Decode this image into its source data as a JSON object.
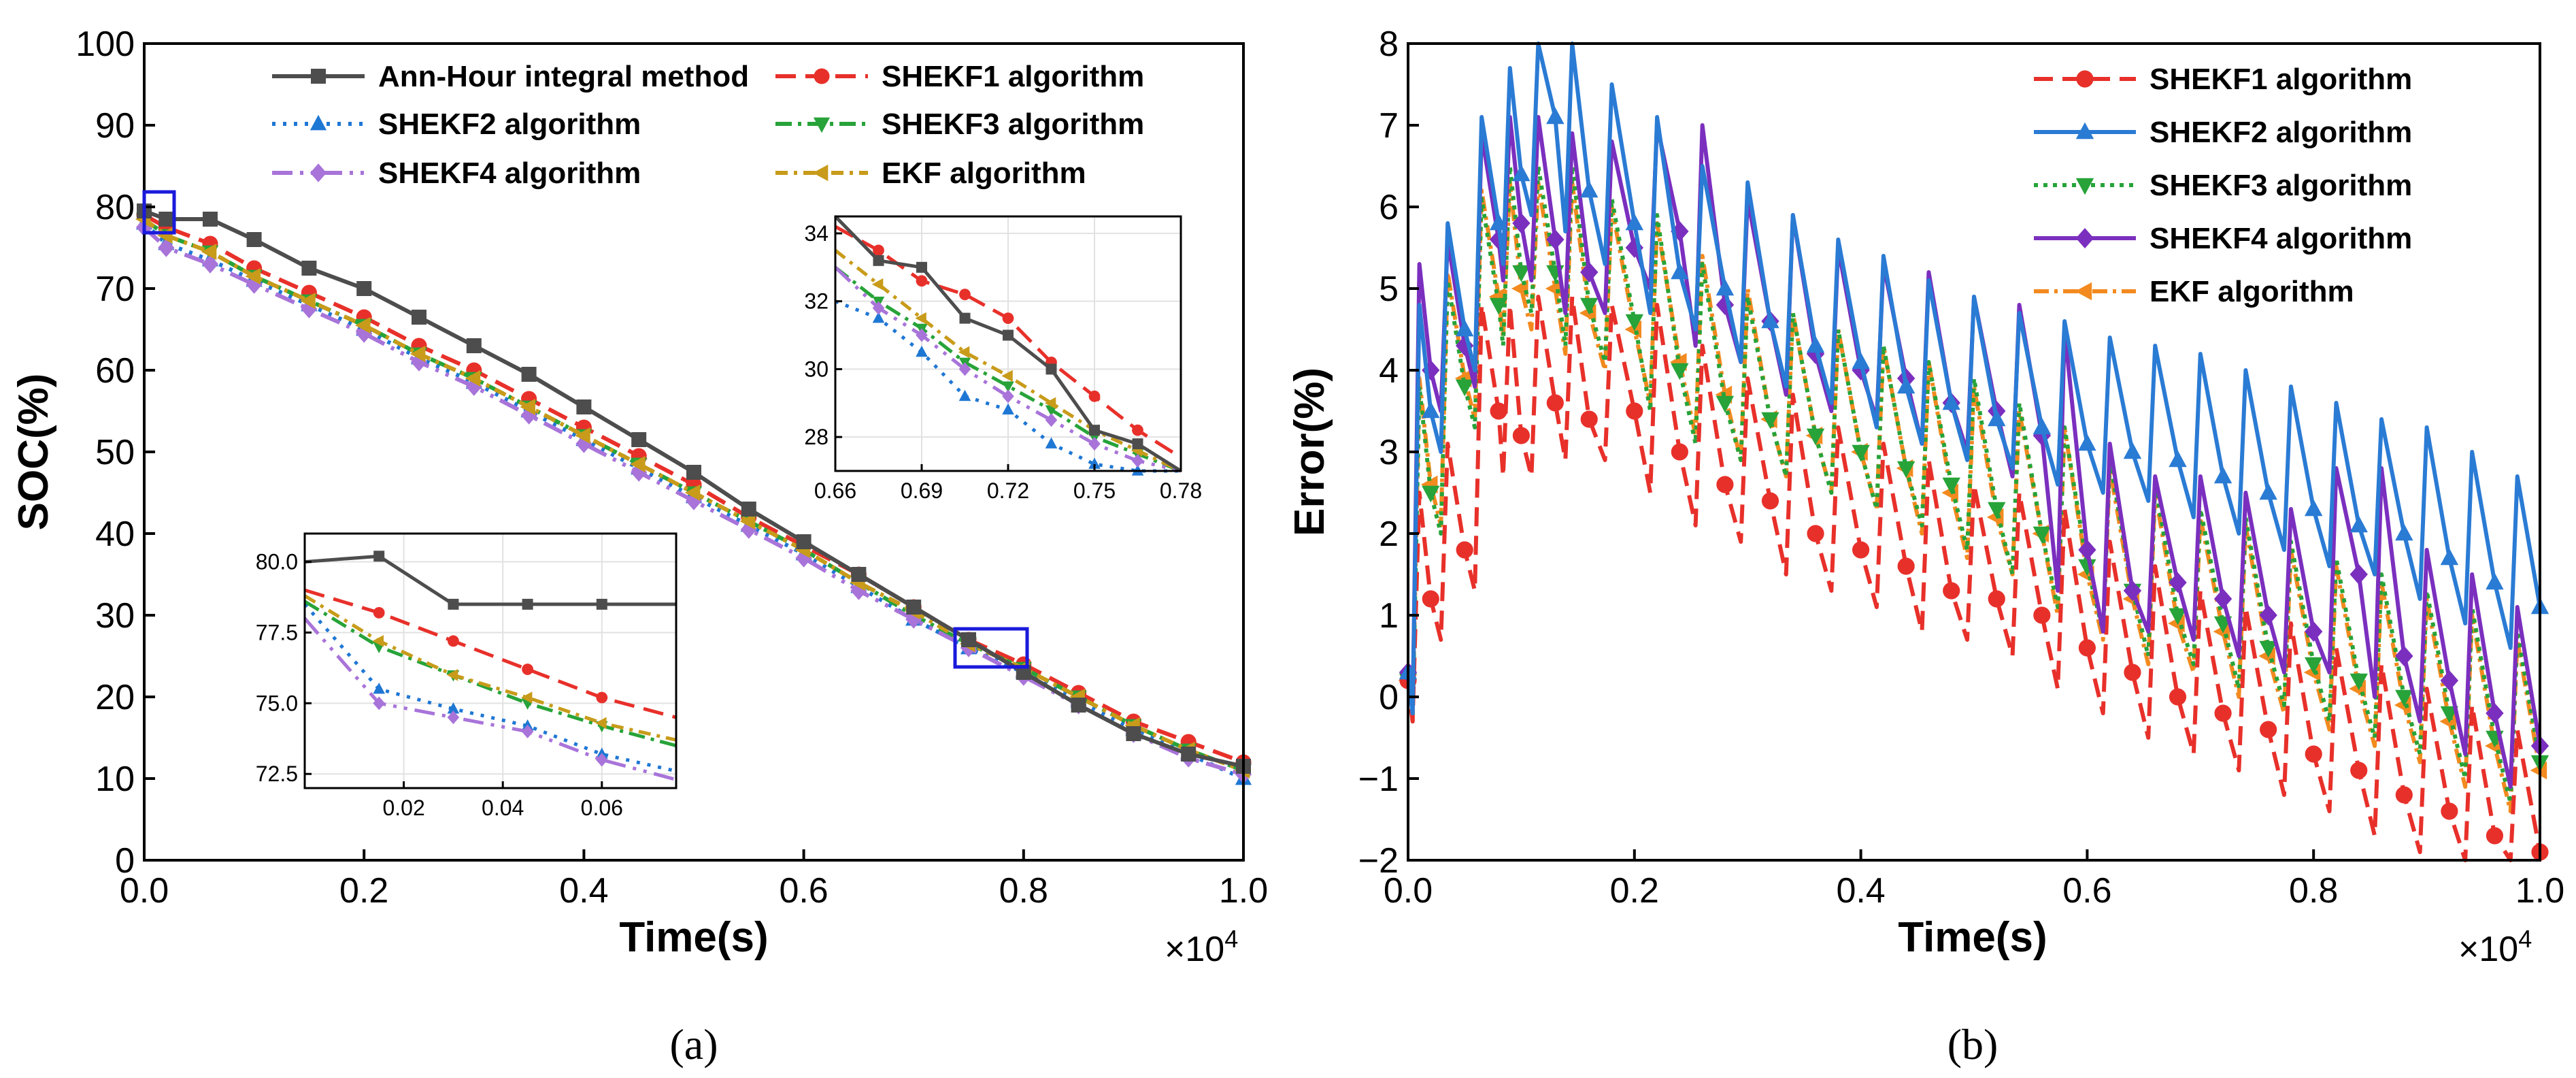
{
  "chart_data": [
    {
      "id": "a",
      "type": "line",
      "caption": "(a)",
      "xlabel": "Time(s)",
      "ylabel": "SOC(%)",
      "x_multiplier": "×10",
      "x_multiplier_exp": "4",
      "xlim": [
        0.0,
        1.0
      ],
      "ylim": [
        0,
        100
      ],
      "xticks": [
        0.0,
        0.2,
        0.4,
        0.6,
        0.8,
        1.0
      ],
      "xtick_labels": [
        "0.0",
        "0.2",
        "0.4",
        "0.6",
        "0.8",
        "1.0"
      ],
      "yticks": [
        0,
        10,
        20,
        30,
        40,
        50,
        60,
        70,
        80,
        90,
        100
      ],
      "ytick_labels": [
        "0",
        "10",
        "20",
        "30",
        "40",
        "50",
        "60",
        "70",
        "80",
        "90",
        "100"
      ],
      "x": [
        0.0,
        0.02,
        0.06,
        0.1,
        0.15,
        0.2,
        0.25,
        0.3,
        0.35,
        0.4,
        0.45,
        0.5,
        0.55,
        0.6,
        0.65,
        0.7,
        0.75,
        0.8,
        0.85,
        0.9,
        0.95,
        1.0
      ],
      "series": [
        {
          "name": "Ann-Hour integral method",
          "color": "#4d4d4d",
          "dash": "",
          "marker": "square",
          "values": [
            79.5,
            78.5,
            78.5,
            76.0,
            72.5,
            70.0,
            66.5,
            63.0,
            59.5,
            55.5,
            51.5,
            47.5,
            43.0,
            39.0,
            35.0,
            31.0,
            27.0,
            23.0,
            19.0,
            15.5,
            13.0,
            11.5
          ]
        },
        {
          "name": "SHEKF1 algorithm",
          "color": "#e8302a",
          "dash": "30,14",
          "marker": "circle",
          "values": [
            79.0,
            77.5,
            75.5,
            72.5,
            69.5,
            66.5,
            63.0,
            60.0,
            56.5,
            53.0,
            49.5,
            46.0,
            42.0,
            38.5,
            35.0,
            31.0,
            27.0,
            24.0,
            20.5,
            17.0,
            14.5,
            12.0
          ]
        },
        {
          "name": "SHEKF2 algorithm",
          "color": "#1f77d4",
          "dash": "5,11",
          "marker": "triangle-up",
          "values": [
            78.0,
            75.5,
            73.5,
            71.0,
            68.0,
            65.0,
            61.5,
            58.5,
            55.0,
            51.5,
            48.0,
            44.5,
            41.0,
            37.5,
            33.5,
            29.5,
            26.0,
            23.0,
            19.5,
            16.0,
            13.0,
            10.0
          ]
        },
        {
          "name": "SHEKF3 algorithm",
          "color": "#27a339",
          "dash": "24,9,5,9",
          "marker": "triangle-down",
          "values": [
            78.5,
            76.5,
            74.5,
            71.5,
            68.5,
            65.5,
            62.0,
            59.0,
            55.5,
            52.0,
            48.5,
            45.0,
            41.5,
            38.0,
            34.0,
            30.0,
            26.5,
            23.5,
            20.0,
            16.5,
            13.5,
            11.0
          ]
        },
        {
          "name": "SHEKF4 algorithm",
          "color": "#a874d9",
          "dash": "30,11,5,11,5,11",
          "marker": "diamond",
          "values": [
            77.5,
            75.0,
            73.0,
            70.5,
            67.5,
            64.5,
            61.0,
            58.0,
            54.5,
            51.0,
            47.5,
            44.0,
            40.5,
            37.0,
            33.0,
            29.5,
            26.0,
            22.5,
            19.0,
            15.5,
            12.5,
            10.5
          ]
        },
        {
          "name": "EKF algorithm",
          "color": "#c89b1a",
          "dash": "18,9,5,9",
          "marker": "triangle-left",
          "values": [
            78.5,
            76.5,
            74.5,
            71.5,
            68.5,
            65.5,
            62.0,
            59.0,
            55.5,
            52.0,
            48.5,
            45.0,
            41.5,
            38.0,
            34.0,
            30.5,
            26.5,
            23.5,
            20.0,
            16.5,
            13.5,
            11.0
          ]
        }
      ],
      "insets": [
        {
          "name": "inset-top-right",
          "xlim": [
            0.66,
            0.78
          ],
          "ylim": [
            27,
            34.5
          ],
          "xtick_labels": [
            "0.66",
            "0.69",
            "0.72",
            "0.75",
            "0.78"
          ],
          "xticks": [
            0.66,
            0.69,
            0.72,
            0.75,
            0.78
          ],
          "ytick_labels": [
            "28",
            "30",
            "32",
            "34"
          ],
          "yticks": [
            28,
            30,
            32,
            34
          ],
          "x": [
            0.66,
            0.675,
            0.69,
            0.705,
            0.72,
            0.735,
            0.75,
            0.765,
            0.78
          ],
          "values": {
            "Ann-Hour integral method": [
              34.5,
              33.2,
              33.0,
              31.5,
              31.0,
              30.0,
              28.2,
              27.8,
              27.0
            ],
            "SHEKF1 algorithm": [
              34.2,
              33.5,
              32.6,
              32.2,
              31.5,
              30.2,
              29.2,
              28.2,
              27.4
            ],
            "SHEKF2 algorithm": [
              32.0,
              31.5,
              30.5,
              29.2,
              28.8,
              27.8,
              27.2,
              27.0,
              27.0
            ],
            "SHEKF3 algorithm": [
              33.0,
              32.0,
              31.2,
              30.2,
              29.5,
              28.8,
              28.0,
              27.5,
              27.0
            ],
            "SHEKF4 algorithm": [
              33.0,
              31.8,
              31.0,
              30.0,
              29.2,
              28.5,
              27.8,
              27.3,
              27.0
            ],
            "EKF algorithm": [
              33.5,
              32.5,
              31.5,
              30.5,
              29.8,
              29.0,
              28.2,
              27.6,
              27.0
            ]
          }
        },
        {
          "name": "inset-bottom-left",
          "xlim": [
            0.0,
            0.075
          ],
          "ylim": [
            72,
            81
          ],
          "xtick_labels": [
            "0.02",
            "0.04",
            "0.06"
          ],
          "xticks": [
            0.02,
            0.04,
            0.06
          ],
          "ytick_labels": [
            "72.5",
            "75.0",
            "77.5",
            "80.0"
          ],
          "yticks": [
            72.5,
            75.0,
            77.5,
            80.0
          ],
          "x": [
            0.0,
            0.015,
            0.03,
            0.045,
            0.06,
            0.075
          ],
          "values": {
            "Ann-Hour integral method": [
              80.0,
              80.2,
              78.5,
              78.5,
              78.5,
              78.5
            ],
            "SHEKF1 algorithm": [
              79.0,
              78.2,
              77.2,
              76.2,
              75.2,
              74.5
            ],
            "SHEKF2 algorithm": [
              78.5,
              75.5,
              74.8,
              74.2,
              73.2,
              72.6
            ],
            "SHEKF3 algorithm": [
              78.6,
              77.0,
              76.0,
              75.0,
              74.2,
              73.5
            ],
            "SHEKF4 algorithm": [
              78.0,
              75.0,
              74.5,
              74.0,
              73.0,
              72.3
            ],
            "EKF algorithm": [
              78.8,
              77.2,
              76.0,
              75.2,
              74.3,
              73.7
            ]
          }
        }
      ]
    },
    {
      "id": "b",
      "type": "line",
      "caption": "(b)",
      "xlabel": "Time(s)",
      "ylabel": "Error(%)",
      "x_multiplier": "×10",
      "x_multiplier_exp": "4",
      "xlim": [
        0.0,
        1.0
      ],
      "ylim": [
        -2,
        8
      ],
      "xticks": [
        0.0,
        0.2,
        0.4,
        0.6,
        0.8,
        1.0
      ],
      "xtick_labels": [
        "0.0",
        "0.2",
        "0.4",
        "0.6",
        "0.8",
        "1.0"
      ],
      "yticks": [
        -2,
        -1,
        0,
        1,
        2,
        3,
        4,
        5,
        6,
        7,
        8
      ],
      "ytick_labels": [
        "−2",
        "−1",
        "0",
        "1",
        "2",
        "3",
        "4",
        "5",
        "6",
        "7",
        "8"
      ],
      "x": [
        0.0,
        0.02,
        0.05,
        0.08,
        0.1,
        0.13,
        0.16,
        0.2,
        0.24,
        0.28,
        0.32,
        0.36,
        0.4,
        0.44,
        0.48,
        0.52,
        0.56,
        0.6,
        0.64,
        0.68,
        0.72,
        0.76,
        0.8,
        0.84,
        0.88,
        0.92,
        0.96,
        1.0
      ],
      "series": [
        {
          "name": "SHEKF1 algorithm",
          "color": "#e8302a",
          "dash": "28,14",
          "marker": "circle",
          "values": [
            0.2,
            1.2,
            1.8,
            3.5,
            3.2,
            3.6,
            3.4,
            3.5,
            3.0,
            2.6,
            2.4,
            2.0,
            1.8,
            1.6,
            1.3,
            1.2,
            1.0,
            0.6,
            0.3,
            0.0,
            -0.2,
            -0.4,
            -0.7,
            -0.9,
            -1.2,
            -1.4,
            -1.7,
            -1.9
          ]
        },
        {
          "name": "SHEKF2 algorithm",
          "color": "#2a7bd4",
          "dash": "",
          "marker": "triangle-up",
          "values": [
            0.3,
            3.5,
            4.5,
            5.8,
            6.4,
            7.1,
            6.2,
            5.8,
            5.2,
            5.0,
            4.6,
            4.3,
            4.1,
            3.8,
            3.6,
            3.4,
            3.3,
            3.1,
            3.0,
            2.9,
            2.7,
            2.5,
            2.3,
            2.1,
            2.0,
            1.7,
            1.4,
            1.1
          ]
        },
        {
          "name": "SHEKF3 algorithm",
          "color": "#27a339",
          "dash": "6,8",
          "marker": "triangle-down",
          "values": [
            0.2,
            2.5,
            3.8,
            4.8,
            5.2,
            5.2,
            4.8,
            4.6,
            4.0,
            3.6,
            3.4,
            3.2,
            3.0,
            2.8,
            2.6,
            2.3,
            2.0,
            1.6,
            1.3,
            1.0,
            0.9,
            0.6,
            0.4,
            0.2,
            0.0,
            -0.2,
            -0.5,
            -0.8
          ]
        },
        {
          "name": "SHEKF4 algorithm",
          "color": "#7b2fbe",
          "dash": "",
          "marker": "diamond",
          "values": [
            0.3,
            4.0,
            4.3,
            5.6,
            5.8,
            5.6,
            5.2,
            5.5,
            5.7,
            4.8,
            4.6,
            4.2,
            4.0,
            3.9,
            3.6,
            3.5,
            3.2,
            1.8,
            1.3,
            1.4,
            1.2,
            1.0,
            0.8,
            1.5,
            0.5,
            0.2,
            -0.2,
            -0.6
          ]
        },
        {
          "name": "EKF algorithm",
          "color": "#f28a1f",
          "dash": "22,8,5,8",
          "marker": "triangle-left",
          "values": [
            0.2,
            2.6,
            3.9,
            4.9,
            5.0,
            5.0,
            4.7,
            4.5,
            4.1,
            3.7,
            3.4,
            3.2,
            3.0,
            2.8,
            2.5,
            2.2,
            2.0,
            1.5,
            1.2,
            0.9,
            0.8,
            0.5,
            0.3,
            0.1,
            -0.1,
            -0.3,
            -0.6,
            -0.9
          ]
        }
      ]
    }
  ]
}
